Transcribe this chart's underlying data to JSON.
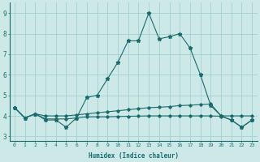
{
  "title": "",
  "xlabel": "Humidex (Indice chaleur)",
  "xlim": [
    -0.5,
    23.5
  ],
  "ylim": [
    2.8,
    9.5
  ],
  "yticks": [
    3,
    4,
    5,
    6,
    7,
    8,
    9
  ],
  "xticks": [
    0,
    1,
    2,
    3,
    4,
    5,
    6,
    7,
    8,
    9,
    10,
    11,
    12,
    13,
    14,
    15,
    16,
    17,
    18,
    19,
    20,
    21,
    22,
    23
  ],
  "bg_color": "#cce9e8",
  "line_color": "#1a6b6b",
  "grid_color": "#99cccc",
  "line1_x": [
    0,
    1,
    2,
    3,
    4,
    5,
    6,
    7,
    8,
    9,
    10,
    11,
    12,
    13,
    14,
    15,
    16,
    17,
    18,
    19,
    20,
    21,
    22,
    23
  ],
  "line1_y": [
    4.4,
    3.9,
    4.1,
    3.8,
    3.8,
    3.45,
    3.9,
    4.9,
    5.0,
    5.8,
    6.6,
    7.65,
    7.65,
    9.0,
    7.75,
    7.85,
    8.0,
    7.3,
    6.0,
    4.5,
    4.0,
    3.8,
    3.45,
    3.8
  ],
  "line2_x": [
    0,
    1,
    2,
    3,
    4,
    5,
    6,
    7,
    8,
    9,
    10,
    11,
    12,
    13,
    14,
    15,
    16,
    17,
    18,
    19,
    20,
    21,
    22,
    23
  ],
  "line2_y": [
    4.4,
    3.9,
    4.1,
    4.0,
    4.0,
    4.0,
    4.05,
    4.1,
    4.15,
    4.2,
    4.25,
    4.3,
    4.35,
    4.4,
    4.42,
    4.45,
    4.5,
    4.52,
    4.55,
    4.58,
    4.0,
    4.0,
    4.0,
    4.0
  ],
  "line3_x": [
    0,
    1,
    2,
    3,
    4,
    5,
    6,
    7,
    8,
    9,
    10,
    11,
    12,
    13,
    14,
    15,
    16,
    17,
    18,
    19,
    20,
    21,
    22,
    23
  ],
  "line3_y": [
    4.4,
    3.9,
    4.1,
    3.85,
    3.85,
    3.85,
    3.9,
    3.95,
    3.95,
    3.95,
    3.97,
    3.98,
    3.99,
    4.0,
    4.0,
    4.0,
    4.0,
    4.0,
    4.0,
    4.0,
    3.98,
    3.8,
    3.45,
    3.8
  ]
}
